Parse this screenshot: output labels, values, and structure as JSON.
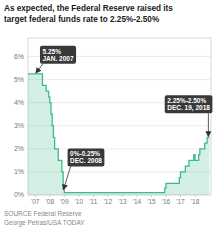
{
  "chart_data": {
    "type": "step",
    "title": "As expected, the Federal Reserve raised its\ntarget federal funds rate to 2.25%-2.50%",
    "source": [
      "SOURCE Federal Reserve",
      "George Petras/USA TODAY"
    ],
    "color": "#3dba8a",
    "grid": true,
    "x": [
      2006.5,
      2007.0,
      2007.5,
      2007.75,
      2007.917,
      2008.0,
      2008.083,
      2008.167,
      2008.25,
      2008.333,
      2008.583,
      2008.833,
      2008.917,
      2009.0,
      2015.0,
      2015.917,
      2016.0,
      2016.917,
      2017.0,
      2017.333,
      2017.583,
      2017.917,
      2018.0,
      2018.25,
      2018.333,
      2018.583,
      2018.667,
      2018.833,
      2018.917,
      2019.0
    ],
    "values": [
      0.0525,
      0.0525,
      0.0475,
      0.045,
      0.0425,
      0.04,
      0.035,
      0.03,
      0.025,
      0.02,
      0.015,
      0.01,
      0.0025,
      0.001,
      0.001,
      0.003,
      0.005,
      0.0075,
      0.01,
      0.0125,
      0.015,
      0.0175,
      0.015,
      0.0175,
      0.02,
      0.02,
      0.0225,
      0.025,
      0.025,
      0.025
    ],
    "xlim": [
      2006.5,
      2019.1
    ],
    "ylim": [
      0,
      0.068
    ],
    "xticks": [
      {
        "value": 2007,
        "label": "'07"
      },
      {
        "value": 2008,
        "label": "'08"
      },
      {
        "value": 2009,
        "label": "'09"
      },
      {
        "value": 2010,
        "label": "'10"
      },
      {
        "value": 2011,
        "label": "'11"
      },
      {
        "value": 2012,
        "label": "'12"
      },
      {
        "value": 2013,
        "label": "'13"
      },
      {
        "value": 2014,
        "label": "'14"
      },
      {
        "value": 2015,
        "label": "'15"
      },
      {
        "value": 2016,
        "label": "'16"
      },
      {
        "value": 2017,
        "label": "'17"
      },
      {
        "value": 2018,
        "label": "'18"
      }
    ],
    "yticks": [
      {
        "value": 0,
        "label": "0%"
      },
      {
        "value": 0.01,
        "label": "1%"
      },
      {
        "value": 0.02,
        "label": "2%"
      },
      {
        "value": 0.03,
        "label": "3%"
      },
      {
        "value": 0.04,
        "label": "4%"
      },
      {
        "value": 0.05,
        "label": "5%"
      },
      {
        "value": 0.06,
        "label": "6%"
      }
    ],
    "annotations": [
      {
        "text": "5.25%",
        "subtext": "JAN. 2007",
        "x": 2007.05,
        "y": 0.0525
      },
      {
        "text": "0%-0.25%",
        "subtext": "DEC. 2008",
        "x": 2008.95,
        "y": 0.002
      },
      {
        "text": "2.25%-2.50%",
        "subtext": "DEC. 19, 2018",
        "x": 2018.92,
        "y": 0.025
      }
    ]
  }
}
